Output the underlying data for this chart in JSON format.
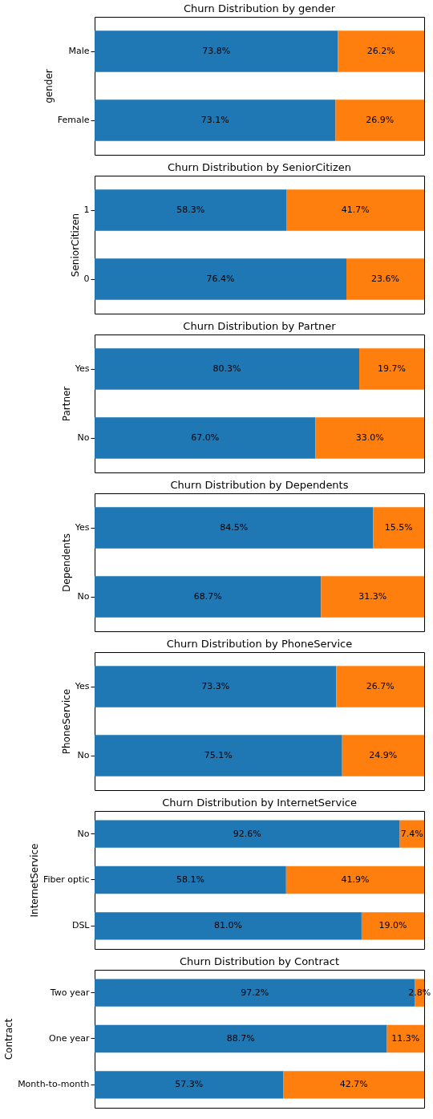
{
  "chart_data": [
    {
      "type": "bar",
      "orientation": "horizontal",
      "stacked": true,
      "title": "Churn Distribution by gender",
      "ylabel": "gender",
      "categories": [
        "Male",
        "Female"
      ],
      "tick_labels": "y",
      "grid": false,
      "series": [
        {
          "color": "#1f77b4",
          "values": [
            73.8,
            73.1
          ],
          "value_labels": [
            "73.8%",
            "73.1%"
          ]
        },
        {
          "color": "#ff7f0e",
          "values": [
            26.2,
            26.9
          ],
          "value_labels": [
            "26.2%",
            "26.9%"
          ]
        }
      ]
    },
    {
      "type": "bar",
      "orientation": "horizontal",
      "stacked": true,
      "title": "Churn Distribution by SeniorCitizen",
      "ylabel": "SeniorCitizen",
      "categories": [
        "1",
        "0"
      ],
      "tick_labels": "y",
      "grid": false,
      "series": [
        {
          "color": "#1f77b4",
          "values": [
            58.3,
            76.4
          ],
          "value_labels": [
            "58.3%",
            "76.4%"
          ]
        },
        {
          "color": "#ff7f0e",
          "values": [
            41.7,
            23.6
          ],
          "value_labels": [
            "41.7%",
            "23.6%"
          ]
        }
      ]
    },
    {
      "type": "bar",
      "orientation": "horizontal",
      "stacked": true,
      "title": "Churn Distribution by Partner",
      "ylabel": "Partner",
      "categories": [
        "Yes",
        "No"
      ],
      "tick_labels": "y",
      "grid": false,
      "series": [
        {
          "color": "#1f77b4",
          "values": [
            80.3,
            67.0
          ],
          "value_labels": [
            "80.3%",
            "67.0%"
          ]
        },
        {
          "color": "#ff7f0e",
          "values": [
            19.7,
            33.0
          ],
          "value_labels": [
            "19.7%",
            "33.0%"
          ]
        }
      ]
    },
    {
      "type": "bar",
      "orientation": "horizontal",
      "stacked": true,
      "title": "Churn Distribution by Dependents",
      "ylabel": "Dependents",
      "categories": [
        "Yes",
        "No"
      ],
      "tick_labels": "y",
      "grid": false,
      "series": [
        {
          "color": "#1f77b4",
          "values": [
            84.5,
            68.7
          ],
          "value_labels": [
            "84.5%",
            "68.7%"
          ]
        },
        {
          "color": "#ff7f0e",
          "values": [
            15.5,
            31.3
          ],
          "value_labels": [
            "15.5%",
            "31.3%"
          ]
        }
      ]
    },
    {
      "type": "bar",
      "orientation": "horizontal",
      "stacked": true,
      "title": "Churn Distribution by PhoneService",
      "ylabel": "PhoneService",
      "categories": [
        "Yes",
        "No"
      ],
      "tick_labels": "y",
      "grid": false,
      "series": [
        {
          "color": "#1f77b4",
          "values": [
            73.3,
            75.1
          ],
          "value_labels": [
            "73.3%",
            "75.1%"
          ]
        },
        {
          "color": "#ff7f0e",
          "values": [
            26.7,
            24.9
          ],
          "value_labels": [
            "26.7%",
            "24.9%"
          ]
        }
      ]
    },
    {
      "type": "bar",
      "orientation": "horizontal",
      "stacked": true,
      "title": "Churn Distribution by InternetService",
      "ylabel": "InternetService",
      "categories": [
        "No",
        "Fiber optic",
        "DSL"
      ],
      "tick_labels": "y",
      "grid": false,
      "series": [
        {
          "color": "#1f77b4",
          "values": [
            92.6,
            58.1,
            81.0
          ],
          "value_labels": [
            "92.6%",
            "58.1%",
            "81.0%"
          ]
        },
        {
          "color": "#ff7f0e",
          "values": [
            7.4,
            41.9,
            19.0
          ],
          "value_labels": [
            "7.4%",
            "41.9%",
            "19.0%"
          ]
        }
      ]
    },
    {
      "type": "bar",
      "orientation": "horizontal",
      "stacked": true,
      "title": "Churn Distribution by Contract",
      "ylabel": "Contract",
      "categories": [
        "Two year",
        "One year",
        "Month-to-month"
      ],
      "tick_labels": "y",
      "grid": false,
      "series": [
        {
          "color": "#1f77b4",
          "values": [
            97.2,
            88.7,
            57.3
          ],
          "value_labels": [
            "97.2%",
            "88.7%",
            "57.3%"
          ]
        },
        {
          "color": "#ff7f0e",
          "values": [
            2.8,
            11.3,
            42.7
          ],
          "value_labels": [
            "2.8%",
            "11.3%",
            "42.7%"
          ]
        }
      ]
    }
  ]
}
